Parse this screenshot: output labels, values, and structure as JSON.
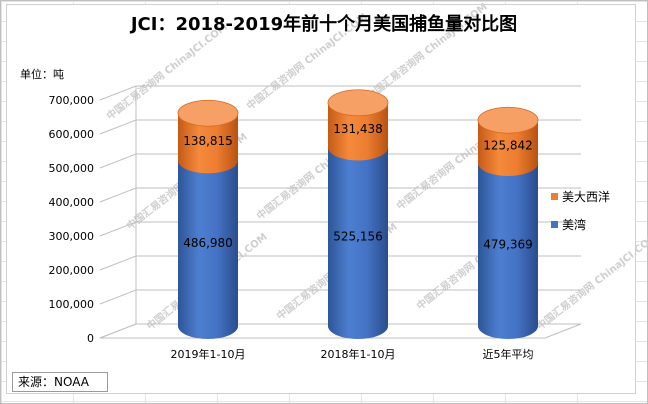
{
  "chart_data": {
    "type": "bar",
    "stacked": true,
    "title": "JCI：2018-2019年前十个月美国捕鱼量对比图",
    "unit_label": "单位：吨",
    "categories": [
      "2019年1-10月",
      "2018年1-10月",
      "近5年平均"
    ],
    "series": [
      {
        "name": "美湾",
        "values": [
          486980,
          525156,
          479369
        ],
        "color": "#4472c4"
      },
      {
        "name": "美大西洋",
        "values": [
          138815,
          131438,
          125842
        ],
        "color": "#ed7d31"
      }
    ],
    "data_labels": {
      "美湾": [
        "486,980",
        "525,156",
        "479,369"
      ],
      "美大西洋": [
        "138,815",
        "131,438",
        "125,842"
      ]
    },
    "ylim": [
      0,
      700000
    ],
    "yticks": [
      "0",
      "100,000",
      "200,000",
      "300,000",
      "400,000",
      "500,000",
      "600,000",
      "700,000"
    ],
    "grid": true,
    "legend_position": "right",
    "source": "来源：NOAA",
    "watermark": "中国汇易咨询网 ChinaJCI.COM"
  }
}
